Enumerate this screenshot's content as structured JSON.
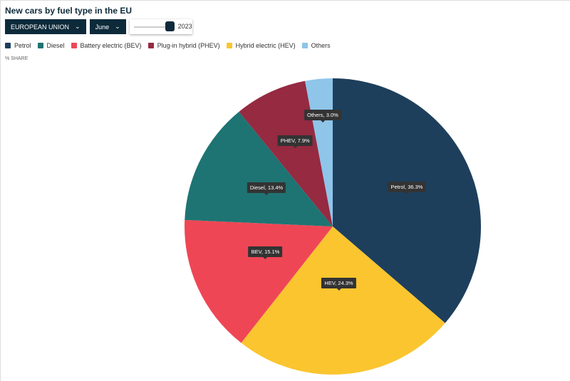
{
  "header": {
    "title": "New cars by fuel type in the EU",
    "region": "EUROPEAN UNION",
    "month": "June",
    "year": "2023",
    "year_slider_position": 1.0,
    "unit_label": "% SHARE"
  },
  "chart_data": {
    "type": "pie",
    "title": "New cars by fuel type in the EU",
    "unit": "% share",
    "legend_placement": "top-left",
    "slices": [
      {
        "name": "Petrol",
        "short": "Petrol",
        "value": 36.3,
        "label": "Petrol, 36.3%",
        "color": "#1d3f5c"
      },
      {
        "name": "Hybrid electric (HEV)",
        "short": "HEV",
        "value": 24.3,
        "label": "HEV, 24.3%",
        "color": "#fac52f"
      },
      {
        "name": "Battery electric (BEV)",
        "short": "BEV",
        "value": 15.1,
        "label": "BEV, 15.1%",
        "color": "#ef4655"
      },
      {
        "name": "Diesel",
        "short": "Diesel",
        "value": 13.4,
        "label": "Diesel, 13.4%",
        "color": "#1e7473"
      },
      {
        "name": "Plug-in hybrid (PHEV)",
        "short": "PHEV",
        "value": 7.9,
        "label": "PHEV, 7.9%",
        "color": "#952a41"
      },
      {
        "name": "Others",
        "short": "Others",
        "value": 3.0,
        "label": "Others, 3.0%",
        "color": "#8ec5e9"
      }
    ],
    "legend": [
      {
        "label": "Petrol",
        "color": "#1d3f5c"
      },
      {
        "label": "Diesel",
        "color": "#1e7473"
      },
      {
        "label": "Battery electric (BEV)",
        "color": "#ef4655"
      },
      {
        "label": "Plug-in hybrid (PHEV)",
        "color": "#952a41"
      },
      {
        "label": "Hybrid electric (HEV)",
        "color": "#fac52f"
      },
      {
        "label": "Others",
        "color": "#8ec5e9"
      }
    ]
  }
}
